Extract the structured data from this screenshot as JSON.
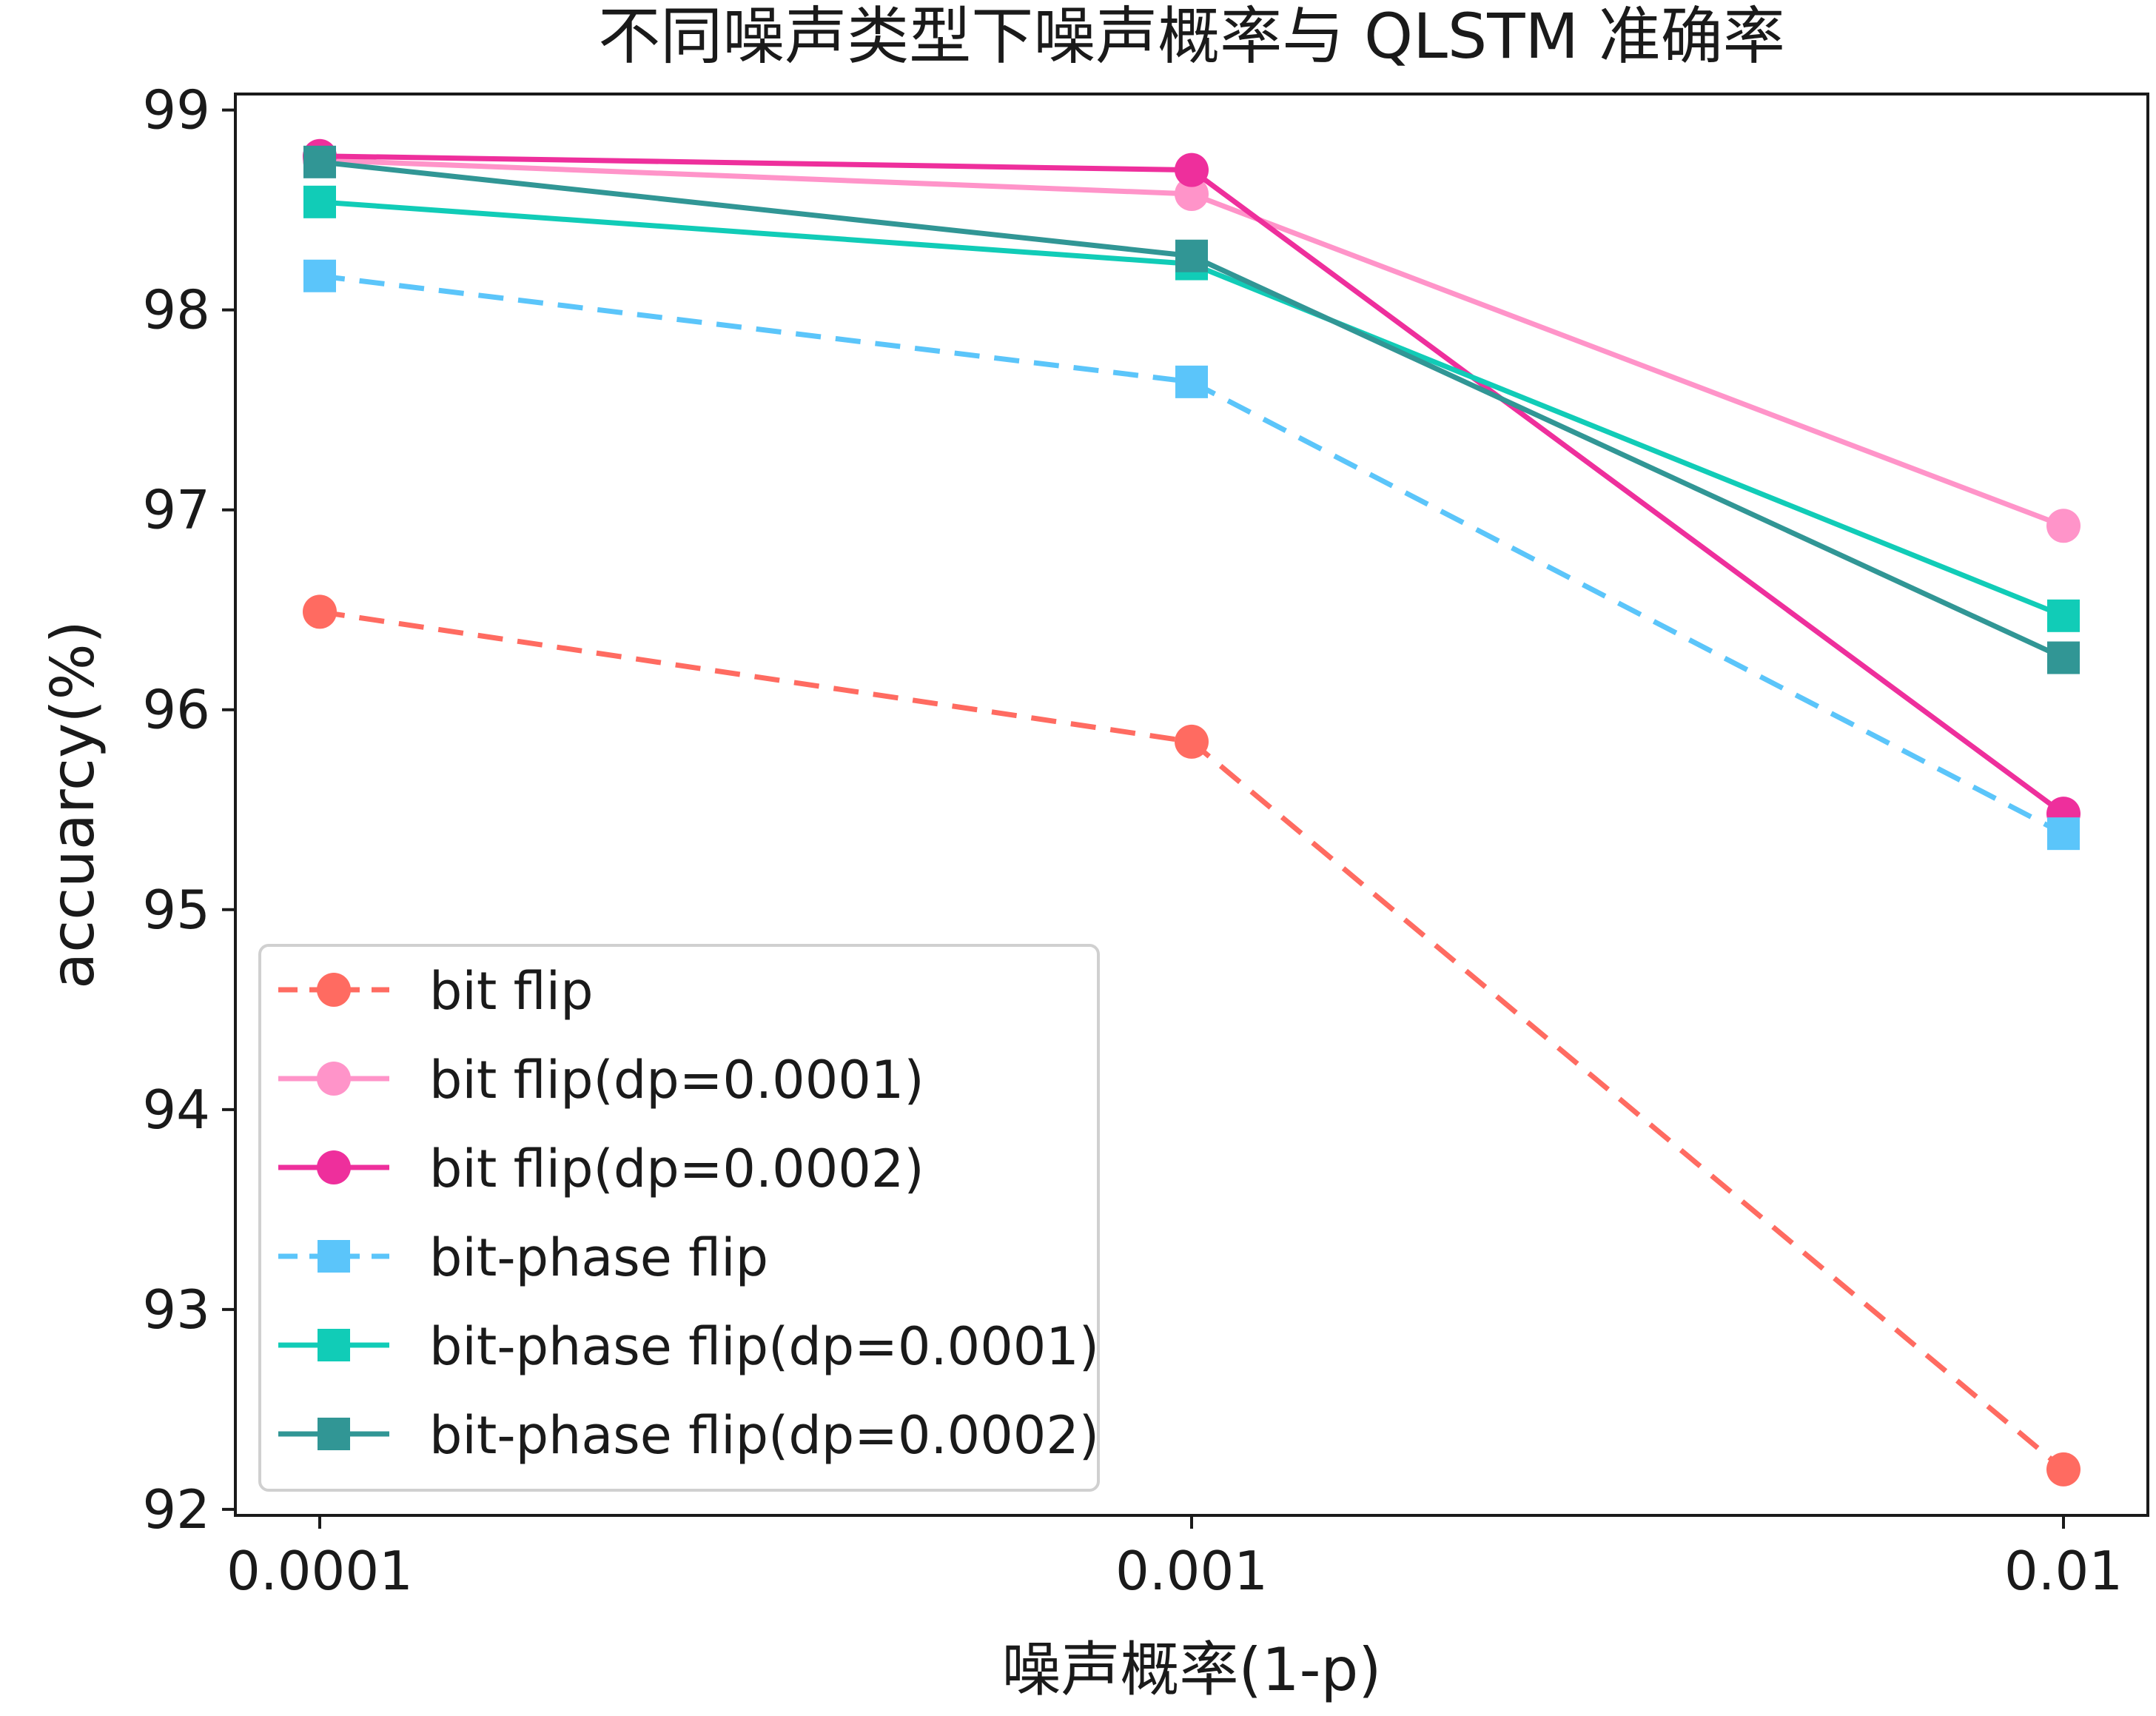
{
  "chart_data": {
    "type": "line",
    "title": "不同噪声类型下噪声概率与 QLSTM 准确率",
    "xlabel": "噪声概率(1-p)",
    "ylabel": "accuarcy(%)",
    "x_scale": "log",
    "x": [
      0.0001,
      0.001,
      0.01
    ],
    "x_tick_labels": [
      "0.0001",
      "0.001",
      "0.01"
    ],
    "ylim": [
      91.97,
      99.08
    ],
    "y_ticks": [
      92,
      93,
      94,
      95,
      96,
      97,
      98,
      99
    ],
    "grid": false,
    "legend_position": "lower-left",
    "series": [
      {
        "name": "bit flip",
        "values": [
          96.49,
          95.84,
          92.2
        ],
        "color": "#FF6B61",
        "linestyle": "dashed",
        "marker": "circle"
      },
      {
        "name": "bit flip(dp=0.0001)",
        "values": [
          98.75,
          98.58,
          96.92
        ],
        "color": "#FF94C9",
        "linestyle": "solid",
        "marker": "circle"
      },
      {
        "name": "bit flip(dp=0.0002)",
        "values": [
          98.77,
          98.7,
          95.48
        ],
        "color": "#EE2F9C",
        "linestyle": "solid",
        "marker": "circle"
      },
      {
        "name": "bit-phase flip",
        "values": [
          98.17,
          97.64,
          95.38
        ],
        "color": "#5BC5FA",
        "linestyle": "dashed",
        "marker": "square"
      },
      {
        "name": "bit-phase flip(dp=0.0001)",
        "values": [
          98.54,
          98.23,
          96.47
        ],
        "color": "#11CCB7",
        "linestyle": "solid",
        "marker": "square"
      },
      {
        "name": "bit-phase flip(dp=0.0002)",
        "values": [
          98.74,
          98.27,
          96.26
        ],
        "color": "#319695",
        "linestyle": "solid",
        "marker": "square"
      }
    ]
  }
}
